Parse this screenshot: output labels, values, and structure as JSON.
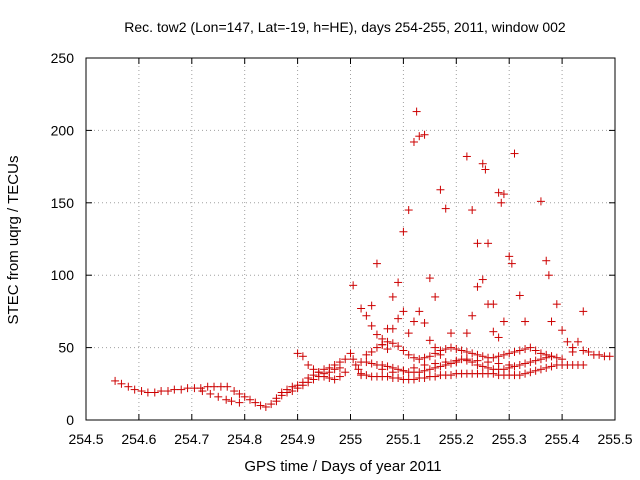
{
  "chart_data": {
    "type": "scatter",
    "title": "Rec. tow2 (Lon=147, Lat=-19, h=HE), days 254-255, 2011, window 002",
    "xlabel": "GPS time / Days of year 2011",
    "ylabel": "STEC from uqrg / TECUs",
    "xlim": [
      254.5,
      255.5
    ],
    "ylim": [
      0,
      250
    ],
    "xticks": [
      "254.5",
      "254.6",
      "254.7",
      "254.8",
      "254.9",
      "255",
      "255.1",
      "255.2",
      "255.3",
      "255.4",
      "255.5"
    ],
    "yticks": [
      "0",
      "50",
      "100",
      "150",
      "200",
      "250"
    ],
    "grid": true,
    "marker": "+",
    "color": "#cc0000",
    "series": [
      {
        "name": "",
        "points": [
          [
            254.555,
            27
          ],
          [
            254.567,
            25
          ],
          [
            254.58,
            23
          ],
          [
            254.592,
            21
          ],
          [
            254.605,
            20
          ],
          [
            254.617,
            19
          ],
          [
            254.63,
            19
          ],
          [
            254.642,
            20
          ],
          [
            254.655,
            20
          ],
          [
            254.667,
            21
          ],
          [
            254.68,
            21
          ],
          [
            254.692,
            22
          ],
          [
            254.705,
            22
          ],
          [
            254.717,
            22
          ],
          [
            254.73,
            23
          ],
          [
            254.742,
            23
          ],
          [
            254.755,
            23
          ],
          [
            254.767,
            23
          ],
          [
            254.78,
            20
          ],
          [
            254.79,
            18
          ],
          [
            254.8,
            16
          ],
          [
            254.81,
            14
          ],
          [
            254.82,
            12
          ],
          [
            254.83,
            10
          ],
          [
            254.84,
            9
          ],
          [
            254.85,
            11
          ],
          [
            254.86,
            13
          ],
          [
            254.72,
            20
          ],
          [
            254.735,
            18
          ],
          [
            254.75,
            16
          ],
          [
            254.765,
            14
          ],
          [
            254.775,
            13
          ],
          [
            254.79,
            12
          ],
          [
            254.87,
            19
          ],
          [
            254.88,
            21
          ],
          [
            254.89,
            23
          ],
          [
            254.9,
            24
          ],
          [
            254.91,
            26
          ],
          [
            254.92,
            29
          ],
          [
            254.93,
            31
          ],
          [
            254.94,
            33
          ],
          [
            254.95,
            35
          ],
          [
            254.96,
            36
          ],
          [
            254.97,
            38
          ],
          [
            254.98,
            40
          ],
          [
            254.99,
            42
          ],
          [
            254.86,
            15
          ],
          [
            254.87,
            17
          ],
          [
            254.88,
            19
          ],
          [
            254.89,
            20
          ],
          [
            254.9,
            22
          ],
          [
            254.91,
            24
          ],
          [
            254.92,
            26
          ],
          [
            254.93,
            28
          ],
          [
            254.94,
            30
          ],
          [
            254.95,
            32
          ],
          [
            254.96,
            33
          ],
          [
            254.97,
            35
          ],
          [
            254.98,
            36
          ],
          [
            254.9,
            46
          ],
          [
            254.91,
            44
          ],
          [
            254.92,
            38
          ],
          [
            254.93,
            35
          ],
          [
            254.94,
            33
          ],
          [
            254.95,
            30
          ],
          [
            254.96,
            29
          ],
          [
            254.97,
            28
          ],
          [
            254.98,
            30
          ],
          [
            254.99,
            33
          ],
          [
            255.0,
            46
          ],
          [
            255.005,
            42
          ],
          [
            255.01,
            38
          ],
          [
            255.015,
            35
          ],
          [
            255.02,
            32
          ],
          [
            255.005,
            93
          ],
          [
            255.02,
            77
          ],
          [
            255.03,
            72
          ],
          [
            255.04,
            79
          ],
          [
            255.05,
            108
          ],
          [
            255.06,
            56
          ],
          [
            255.07,
            63
          ],
          [
            255.08,
            85
          ],
          [
            255.09,
            95
          ],
          [
            255.1,
            130
          ],
          [
            255.11,
            145
          ],
          [
            255.12,
            192
          ],
          [
            255.125,
            213
          ],
          [
            255.13,
            196
          ],
          [
            255.14,
            197
          ],
          [
            255.15,
            98
          ],
          [
            255.16,
            85
          ],
          [
            255.17,
            159
          ],
          [
            255.18,
            146
          ],
          [
            255.19,
            60
          ],
          [
            255.04,
            65
          ],
          [
            255.05,
            59
          ],
          [
            255.06,
            52
          ],
          [
            255.07,
            49
          ],
          [
            255.08,
            63
          ],
          [
            255.09,
            70
          ],
          [
            255.1,
            75
          ],
          [
            255.11,
            60
          ],
          [
            255.12,
            68
          ],
          [
            255.13,
            75
          ],
          [
            255.14,
            67
          ],
          [
            255.15,
            55
          ],
          [
            255.16,
            50
          ],
          [
            255.17,
            45
          ],
          [
            255.22,
            182
          ],
          [
            255.23,
            145
          ],
          [
            255.24,
            122
          ],
          [
            255.25,
            177
          ],
          [
            255.255,
            173
          ],
          [
            255.26,
            122
          ],
          [
            255.27,
            80
          ],
          [
            255.28,
            157
          ],
          [
            255.285,
            150
          ],
          [
            255.29,
            156
          ],
          [
            255.3,
            113
          ],
          [
            255.305,
            108
          ],
          [
            255.31,
            184
          ],
          [
            255.32,
            86
          ],
          [
            255.33,
            68
          ],
          [
            255.22,
            60
          ],
          [
            255.23,
            72
          ],
          [
            255.24,
            92
          ],
          [
            255.25,
            97
          ],
          [
            255.26,
            80
          ],
          [
            255.27,
            61
          ],
          [
            255.28,
            57
          ],
          [
            255.29,
            68
          ],
          [
            255.36,
            151
          ],
          [
            255.37,
            110
          ],
          [
            255.375,
            100
          ],
          [
            255.38,
            68
          ],
          [
            255.39,
            80
          ],
          [
            255.4,
            62
          ],
          [
            255.41,
            54
          ],
          [
            255.42,
            50
          ],
          [
            255.43,
            54
          ],
          [
            255.44,
            75
          ],
          [
            255.02,
            31
          ],
          [
            255.03,
            31
          ],
          [
            255.04,
            30
          ],
          [
            255.05,
            30
          ],
          [
            255.06,
            30
          ],
          [
            255.07,
            30
          ],
          [
            255.08,
            29
          ],
          [
            255.09,
            29
          ],
          [
            255.1,
            28
          ],
          [
            255.11,
            28
          ],
          [
            255.12,
            28
          ],
          [
            255.13,
            29
          ],
          [
            255.14,
            29
          ],
          [
            255.15,
            30
          ],
          [
            255.16,
            30
          ],
          [
            255.17,
            31
          ],
          [
            255.18,
            31
          ],
          [
            255.19,
            31
          ],
          [
            255.2,
            32
          ],
          [
            255.21,
            32
          ],
          [
            255.22,
            32
          ],
          [
            255.23,
            32
          ],
          [
            255.24,
            32
          ],
          [
            255.25,
            32
          ],
          [
            255.26,
            32
          ],
          [
            255.27,
            32
          ],
          [
            255.28,
            31
          ],
          [
            255.29,
            31
          ],
          [
            255.3,
            31
          ],
          [
            255.31,
            31
          ],
          [
            255.32,
            31
          ],
          [
            255.33,
            32
          ],
          [
            255.34,
            33
          ],
          [
            255.35,
            34
          ],
          [
            255.36,
            35
          ],
          [
            255.37,
            36
          ],
          [
            255.38,
            37
          ],
          [
            255.02,
            40
          ],
          [
            255.03,
            40
          ],
          [
            255.04,
            39
          ],
          [
            255.05,
            38
          ],
          [
            255.06,
            38
          ],
          [
            255.07,
            37
          ],
          [
            255.08,
            36
          ],
          [
            255.09,
            35
          ],
          [
            255.1,
            34
          ],
          [
            255.11,
            33
          ],
          [
            255.12,
            33
          ],
          [
            255.13,
            33
          ],
          [
            255.14,
            34
          ],
          [
            255.15,
            35
          ],
          [
            255.16,
            36
          ],
          [
            255.17,
            37
          ],
          [
            255.18,
            38
          ],
          [
            255.19,
            39
          ],
          [
            255.2,
            40
          ],
          [
            255.21,
            42
          ],
          [
            255.22,
            41
          ],
          [
            255.23,
            40
          ],
          [
            255.24,
            38
          ],
          [
            255.25,
            37
          ],
          [
            255.26,
            36
          ],
          [
            255.27,
            35
          ],
          [
            255.28,
            35
          ],
          [
            255.29,
            35
          ],
          [
            255.3,
            36
          ],
          [
            255.31,
            37
          ],
          [
            255.32,
            38
          ],
          [
            255.33,
            39
          ],
          [
            255.34,
            40
          ],
          [
            255.35,
            41
          ],
          [
            255.36,
            42
          ],
          [
            255.37,
            43
          ],
          [
            255.38,
            44
          ],
          [
            255.03,
            45
          ],
          [
            255.04,
            47
          ],
          [
            255.05,
            50
          ],
          [
            255.06,
            52
          ],
          [
            255.07,
            54
          ],
          [
            255.08,
            53
          ],
          [
            255.09,
            51
          ],
          [
            255.1,
            48
          ],
          [
            255.11,
            45
          ],
          [
            255.12,
            43
          ],
          [
            255.13,
            42
          ],
          [
            255.14,
            43
          ],
          [
            255.15,
            44
          ],
          [
            255.16,
            46
          ],
          [
            255.17,
            48
          ],
          [
            255.18,
            49
          ],
          [
            255.19,
            50
          ],
          [
            255.2,
            49
          ],
          [
            255.21,
            48
          ],
          [
            255.22,
            47
          ],
          [
            255.23,
            46
          ],
          [
            255.24,
            45
          ],
          [
            255.25,
            44
          ],
          [
            255.26,
            43
          ],
          [
            255.27,
            43
          ],
          [
            255.28,
            44
          ],
          [
            255.29,
            45
          ],
          [
            255.3,
            46
          ],
          [
            255.31,
            47
          ],
          [
            255.32,
            48
          ],
          [
            255.33,
            49
          ],
          [
            255.34,
            50
          ],
          [
            255.35,
            48
          ],
          [
            255.36,
            46
          ],
          [
            255.37,
            45
          ],
          [
            255.38,
            44
          ],
          [
            255.39,
            43
          ],
          [
            255.4,
            42
          ],
          [
            255.06,
            35
          ],
          [
            255.08,
            33
          ],
          [
            255.1,
            34
          ],
          [
            255.12,
            36
          ],
          [
            255.14,
            38
          ],
          [
            255.16,
            39
          ],
          [
            255.18,
            40
          ],
          [
            255.2,
            41
          ],
          [
            255.22,
            42
          ],
          [
            255.24,
            41
          ],
          [
            255.26,
            40
          ],
          [
            255.28,
            39
          ],
          [
            255.3,
            38
          ],
          [
            255.39,
            38
          ],
          [
            255.4,
            38
          ],
          [
            255.41,
            38
          ],
          [
            255.42,
            38
          ],
          [
            255.43,
            38
          ],
          [
            255.44,
            38
          ],
          [
            255.42,
            47
          ],
          [
            255.44,
            48
          ],
          [
            255.45,
            47
          ],
          [
            255.46,
            45
          ],
          [
            255.47,
            45
          ],
          [
            255.48,
            44
          ],
          [
            255.49,
            44
          ]
        ]
      }
    ]
  }
}
